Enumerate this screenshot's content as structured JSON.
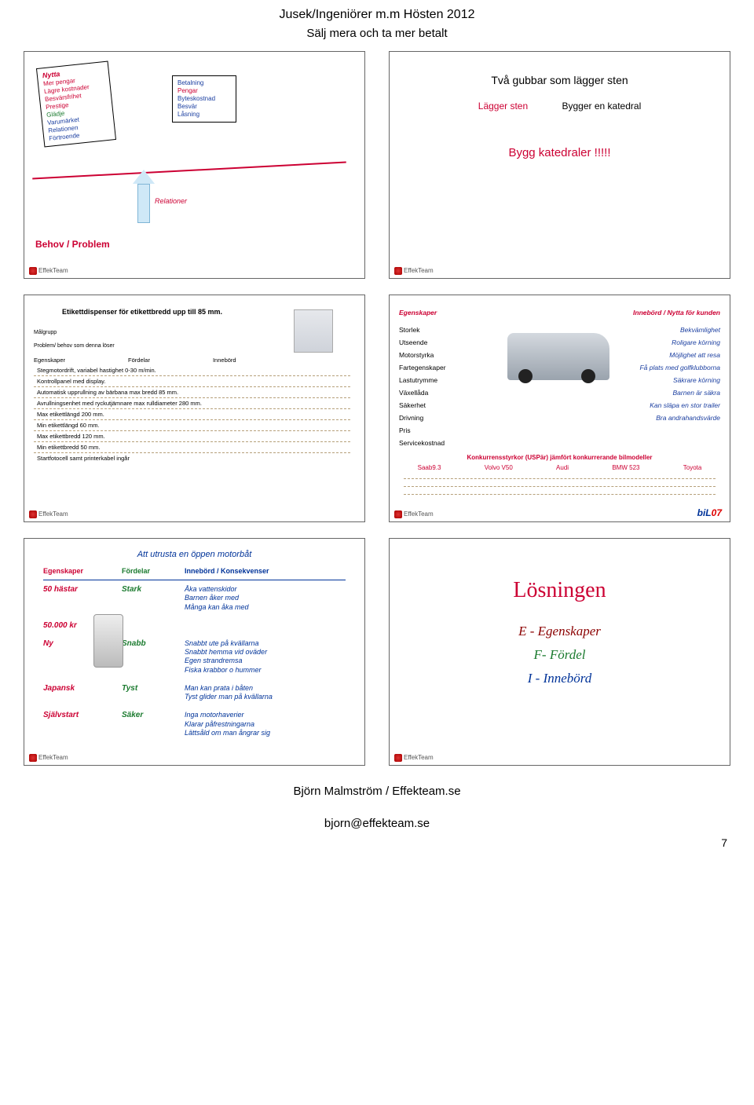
{
  "page": {
    "header": "Jusek/Ingeniörer m.m Hösten 2012",
    "subheader": "Sälj mera och ta mer betalt",
    "footer1": "Björn Malmström / Effekteam.se",
    "footer2": "bjorn@effekteam.se",
    "pagenum": "7",
    "logo_text": "EffekTeam"
  },
  "slide1": {
    "card1": {
      "title": "Nytta",
      "l1": "Mer pengar",
      "l2": "Lägre kostnader",
      "l3": "Besvärsfrihet",
      "l4": "Prestige",
      "l5": "Glädje",
      "l6": "Varumärket",
      "l7": "Relationen",
      "l8": "Förtroende"
    },
    "card2": {
      "l1": "Betalning",
      "l2": "Pengar",
      "l3": "Byteskostnad",
      "l4": "Besvär",
      "l5": "Låsning"
    },
    "relationer": "Relationer",
    "behov": "Behov / Problem"
  },
  "slide2": {
    "title": "Två gubbar som lägger sten",
    "left": "Lägger sten",
    "right": "Bygger en katedral",
    "build": "Bygg katedraler !!!!!"
  },
  "slide3": {
    "title": "Etikettdispenser för etikettbredd upp till 85 mm.",
    "malgrupp": "Målgrupp",
    "problem": "Problem/ behov som denna löser",
    "h1": "Egenskaper",
    "h2": "Fördelar",
    "h3": "Innebörd",
    "r1": "Stegmotordrift, variabel hastighet 0-30 m/min.",
    "r2": "Kontrollpanel med display.",
    "r3": "Automatisk upprullning av bärbana max bredd 85 mm.",
    "r4": "Avrullningsenhet med ryckutjämnare max rulldiameter 280 mm.",
    "r5": "Max etikettlängd 200 mm.",
    "r6": "Min etikettlängd 60 mm.",
    "r7": "Max etikettbredd 120 mm.",
    "r8": "Min etikettbredd 50 mm.",
    "r9": "Startfotocell samt printerkabel ingår"
  },
  "slide4": {
    "h_left": "Egenskaper",
    "h_right": "Innebörd / Nytta för kunden",
    "rows": [
      {
        "l": "Storlek",
        "r": "Bekvämlighet"
      },
      {
        "l": "Utseende",
        "r": "Roligare körning"
      },
      {
        "l": "Motorstyrka",
        "r": "Möjlighet att resa"
      },
      {
        "l": "Fartegenskaper",
        "r": "Få plats med golfklubborna"
      },
      {
        "l": "Lastutrymme",
        "r": "Säkrare körning"
      },
      {
        "l": "Växellåda",
        "r": "Barnen är säkra"
      },
      {
        "l": "Säkerhet",
        "r": "Kan släpa en stor trailer"
      },
      {
        "l": "Drivning",
        "r": "Bra andrahandsvärde"
      },
      {
        "l": "Pris",
        "r": ""
      },
      {
        "l": "Servicekostnad",
        "r": ""
      }
    ],
    "usp": "Konkurrensstyrkor (USPär) jämfört konkurrerande bilmodeller",
    "brands": [
      "Saab9.3",
      "Volvo V50",
      "Audi",
      "BMW 523",
      "Toyota"
    ],
    "bilo": {
      "b": "biL",
      "o": "07"
    }
  },
  "slide5": {
    "title": "Att utrusta en öppen motorbåt",
    "h1": "Egenskaper",
    "h2": "Fördelar",
    "h3": "Innebörd / Konsekvenser",
    "rows": [
      {
        "c1": "50 hästar",
        "c2": "Stark",
        "c3": "Åka vattenskidor\nBarnen åker med\nMånga kan åka med"
      },
      {
        "c1": "50.000 kr",
        "c2": "",
        "c3": ""
      },
      {
        "c1": "Ny",
        "c2": "Snabb",
        "c3": "Snabbt ute på kvällarna\nSnabbt hemma vid oväder\nEgen strandremsa\nFiska krabbor o hummer"
      },
      {
        "c1": "Japansk",
        "c2": "Tyst",
        "c3": "Man kan prata i båten\nTyst glider man på kvällarna"
      },
      {
        "c1": "Självstart",
        "c2": "Säker",
        "c3": "Inga motorhaverier\nKlarar påfrestningarna\nLättsåld om man ångrar sig"
      }
    ]
  },
  "slide6": {
    "title": "Lösningen",
    "l1_pre": "E - ",
    "l1": "Egenskaper",
    "l2_pre": "F- ",
    "l2": "Fördel",
    "l3_pre": "I - ",
    "l3": "Innebörd"
  }
}
